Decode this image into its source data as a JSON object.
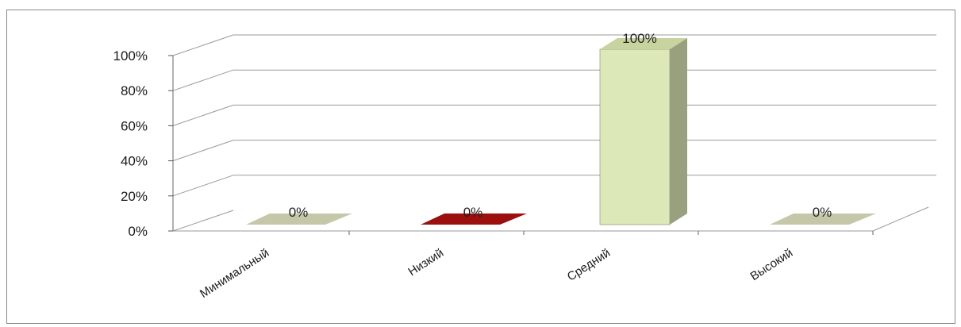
{
  "chart_data": {
    "type": "bar",
    "categories": [
      "Минимальный",
      "Низкий",
      "Средний",
      "Высокий"
    ],
    "values": [
      0,
      0,
      100,
      0
    ],
    "data_labels": [
      "0%",
      "0%",
      "100%",
      "0%"
    ],
    "y_ticks": [
      "0%",
      "20%",
      "40%",
      "60%",
      "80%",
      "100%"
    ],
    "ylim": [
      0,
      100
    ],
    "title": "",
    "xlabel": "",
    "ylabel": "",
    "grid": true,
    "legend": "none",
    "style": "3d-column",
    "colors": {
      "bar_front": [
        "#c4c8a8",
        "#9b0f0f",
        "#dde8b8",
        "#c4c8a8"
      ],
      "bar_side": [
        "#8e9478",
        "#6e0a0a",
        "#98a07e",
        "#8e9478"
      ],
      "bar_top": [
        "#b3b894",
        "#b81818",
        "#c8d3a0",
        "#b3b894"
      ],
      "grid": "#9a9a9a"
    }
  }
}
